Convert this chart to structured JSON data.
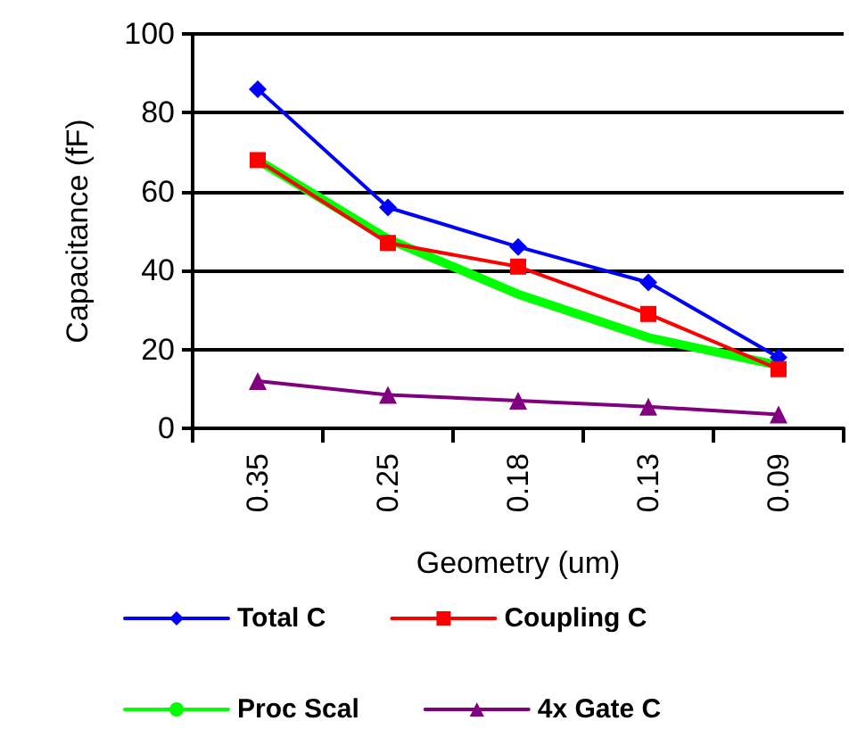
{
  "chart_data": {
    "type": "line",
    "xlabel": "Geometry (um)",
    "ylabel": "Capacitance (fF)",
    "categories": [
      "0.35",
      "0.25",
      "0.18",
      "0.13",
      "0.09"
    ],
    "series": [
      {
        "name": "Total C",
        "color": "#0000ff",
        "marker": "diamond",
        "values": [
          86,
          56,
          46,
          37,
          18
        ]
      },
      {
        "name": "Coupling C",
        "color": "#ff0000",
        "marker": "square",
        "values": [
          68,
          47,
          41,
          29,
          15
        ]
      },
      {
        "name": "Proc Scal",
        "color": "#00ff00",
        "marker": "none",
        "values": [
          68,
          48,
          34,
          23,
          16
        ]
      },
      {
        "name": "4x Gate C",
        "color": "#800080",
        "marker": "triangle",
        "values": [
          12,
          8.5,
          7,
          5.5,
          3.5
        ]
      }
    ],
    "ylim": [
      0,
      100
    ],
    "yticks": [
      0,
      20,
      40,
      60,
      80,
      100
    ],
    "grid": "y",
    "legend": "bottom"
  }
}
